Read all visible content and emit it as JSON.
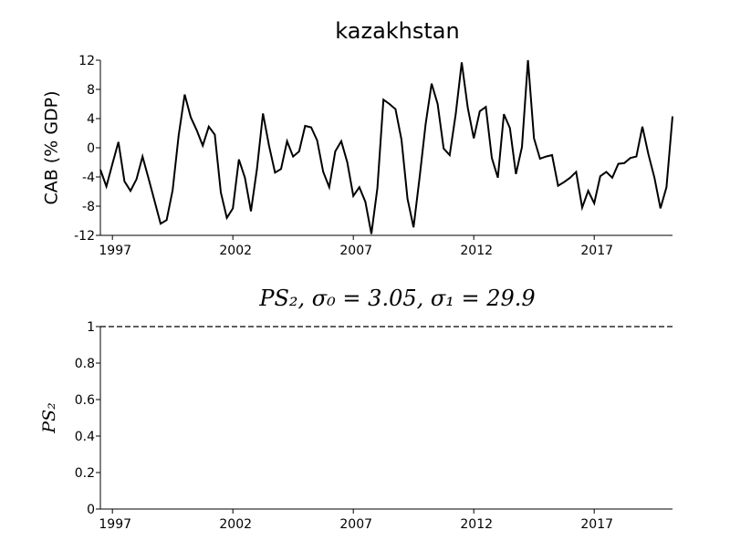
{
  "chart_data": [
    {
      "type": "line",
      "title": "kazakhstan",
      "ylabel": "CAB (% GDP)",
      "x": [
        1996.5,
        1996.75,
        1997,
        1997.25,
        1997.5,
        1997.75,
        1998,
        1998.25,
        1998.5,
        1998.75,
        1999,
        1999.25,
        1999.5,
        1999.75,
        2000,
        2000.25,
        2000.5,
        2000.75,
        2001,
        2001.25,
        2001.5,
        2001.75,
        2002,
        2002.25,
        2002.5,
        2002.75,
        2003,
        2003.25,
        2003.5,
        2003.75,
        2004,
        2004.25,
        2004.5,
        2004.75,
        2005,
        2005.25,
        2005.5,
        2005.75,
        2006,
        2006.25,
        2006.5,
        2006.75,
        2007,
        2007.25,
        2007.5,
        2007.75,
        2008,
        2008.25,
        2008.5,
        2008.75,
        2009,
        2009.25,
        2009.5,
        2009.75,
        2010,
        2010.25,
        2010.5,
        2010.75,
        2011,
        2011.25,
        2011.5,
        2011.75,
        2012,
        2012.25,
        2012.5,
        2012.75,
        2013,
        2013.25,
        2013.5,
        2013.75,
        2014,
        2014.25,
        2014.5,
        2014.75,
        2015,
        2015.25,
        2015.5,
        2015.75,
        2016,
        2016.25,
        2016.5,
        2016.75,
        2017,
        2017.25,
        2017.5,
        2017.75,
        2018,
        2018.25,
        2018.5,
        2018.75,
        2019,
        2019.25,
        2019.5,
        2019.75,
        2020,
        2020.25
      ],
      "series": [
        {
          "color": "#000000",
          "values": [
            -3,
            -5.3,
            -2.2,
            0.8,
            -4.6,
            -5.9,
            -4.3,
            -1.2,
            -4.2,
            -7.3,
            -10.4,
            -9.9,
            -5.8,
            1.7,
            7.3,
            4.2,
            2.4,
            0.3,
            2.9,
            1.8,
            -6.1,
            -9.6,
            -8.3,
            -1.6,
            -4.1,
            -8.7,
            -2.9,
            4.7,
            0.3,
            -3.4,
            -2.9,
            0.9,
            -1.2,
            -0.5,
            3,
            2.8,
            1,
            -3.3,
            -5.4,
            -0.5,
            0.9,
            -2,
            -6.6,
            -5.4,
            -7.4,
            -11.8,
            -5.5,
            6.6,
            6,
            5.3,
            1.1,
            -7,
            -10.9,
            -4.1,
            3.2,
            8.8,
            6,
            -0.1,
            -1,
            4.6,
            11.7,
            5.5,
            1.3,
            5,
            5.6,
            -1.4,
            -4.1,
            4.6,
            2.7,
            -3.6,
            0.1,
            12,
            1.3,
            -1.5,
            -1.2,
            -1,
            -5.2,
            -4.7,
            -4.1,
            -3.3,
            -8.2,
            -5.9,
            -7.6,
            -3.9,
            -3.3,
            -4.1,
            -2.2,
            -2.1,
            -1.4,
            -1.2,
            2.9,
            -0.9,
            -4.1,
            -8.3,
            -5.4,
            4.3
          ]
        }
      ],
      "xlim": [
        1996.5,
        2020.25
      ],
      "xticks": [
        1997,
        2002,
        2007,
        2012,
        2017
      ],
      "ylim": [
        -12,
        12
      ],
      "yticks": [
        -12,
        -8,
        -4,
        0,
        4,
        8,
        12
      ]
    },
    {
      "type": "line",
      "title": "PS₂, σ₀ = 3.05, σ₁ = 29.9",
      "ylabel": "PS₂",
      "x": [
        1996.5,
        2020.25
      ],
      "series": [
        {
          "color": "#000000",
          "dashed": true,
          "values": [
            1,
            1
          ]
        }
      ],
      "xlim": [
        1996.5,
        2020.25
      ],
      "xticks": [
        1997,
        2002,
        2007,
        2012,
        2017
      ],
      "ylim": [
        0,
        1
      ],
      "yticks": [
        0,
        0.2,
        0.4,
        0.6,
        0.8,
        1
      ]
    }
  ]
}
